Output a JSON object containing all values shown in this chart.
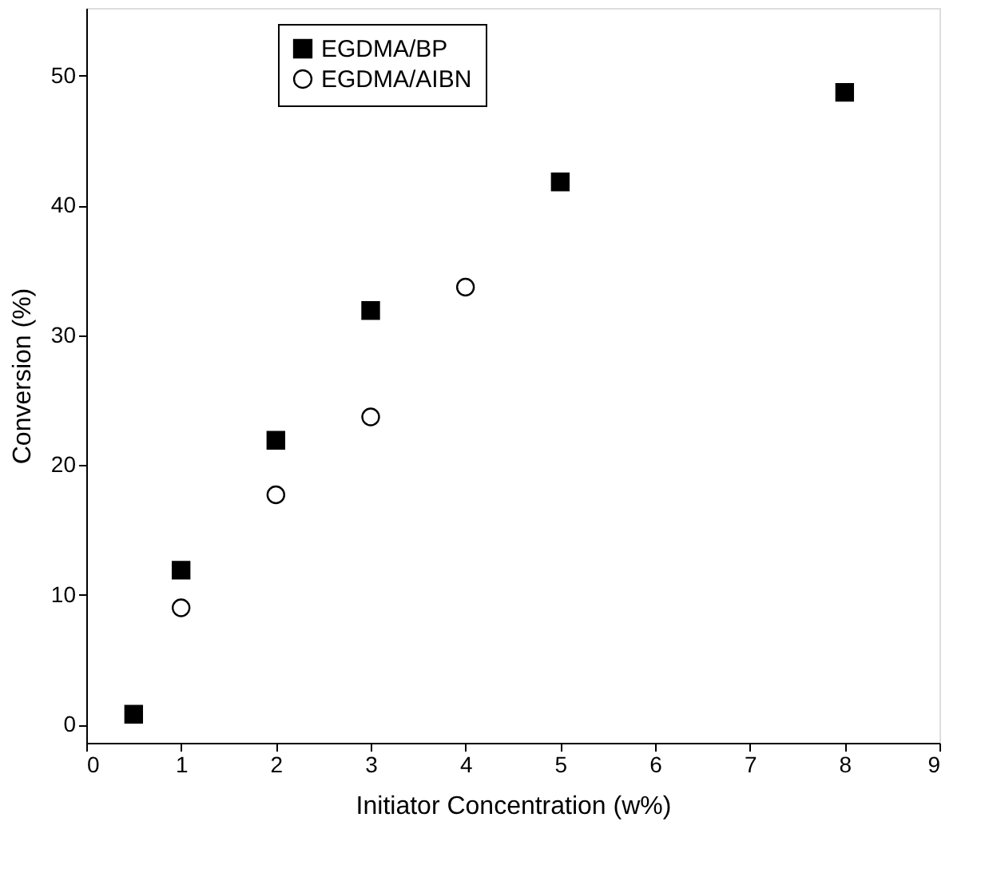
{
  "chart_data": {
    "type": "scatter",
    "xlabel": "Initiator Concentration (w%)",
    "ylabel": "Conversion (%)",
    "xlim": [
      0,
      9
    ],
    "xticks": [
      0,
      1,
      2,
      3,
      4,
      5,
      6,
      7,
      8,
      9
    ],
    "ylim": [
      -1.4,
      55.2
    ],
    "yticks": [
      0,
      10,
      20,
      30,
      40,
      50
    ],
    "grid": false,
    "legend": "top",
    "series": [
      {
        "name": "EGDMA/BP",
        "color": "#000000",
        "marker": "square",
        "x": [
          0.5,
          1,
          2,
          3,
          5,
          8
        ],
        "values": [
          0.8,
          11.9,
          21.9,
          31.9,
          41.8,
          48.7
        ]
      },
      {
        "name": "EGDMA/AIBN",
        "color": "#000000",
        "marker": "circle",
        "x": [
          1,
          2,
          3,
          4
        ],
        "values": [
          9.0,
          17.7,
          23.7,
          33.7
        ]
      }
    ]
  }
}
